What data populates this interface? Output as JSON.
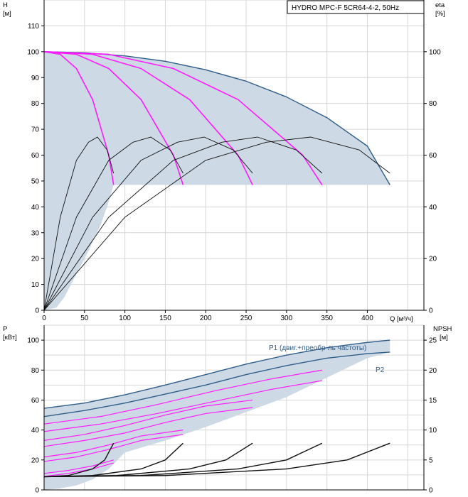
{
  "chart_data": [
    {
      "type": "line",
      "title": "HYDRO MPC-F 5CR64-4-2, 50Hz",
      "x_axis": {
        "label": "Q [м³/ч]",
        "range": [
          0,
          470
        ],
        "ticks": [
          "0",
          "50",
          "100",
          "150",
          "200",
          "250",
          "300",
          "350",
          "400"
        ],
        "tick_values": [
          0,
          50,
          100,
          150,
          200,
          250,
          300,
          350,
          400
        ]
      },
      "left_axis": {
        "label_line1": "H",
        "label_line2": "[м]",
        "range": [
          0,
          120
        ],
        "ticks": [
          "0",
          "10",
          "20",
          "30",
          "40",
          "50",
          "60",
          "70",
          "80",
          "90",
          "100",
          "110"
        ],
        "tick_values": [
          0,
          10,
          20,
          30,
          40,
          50,
          60,
          70,
          80,
          90,
          100,
          110
        ]
      },
      "right_axis": {
        "label_line1": "eta",
        "label_line2": "[%]",
        "range": [
          0,
          120
        ],
        "ticks": [
          "0",
          "20",
          "40",
          "60",
          "80",
          "100"
        ],
        "tick_values": [
          0,
          20,
          40,
          60,
          80,
          100
        ]
      },
      "grid": true,
      "colors": {
        "envelope": "#cdd9e5",
        "max_curve": "#2f5d8a",
        "speed_curve": "#ff1aff",
        "eff_curve": "#111111"
      },
      "series": [
        {
          "kind": "head_max_4pumps",
          "x": [
            0,
            50,
            100,
            150,
            200,
            250,
            300,
            350,
            400,
            428
          ],
          "y": [
            100,
            99.6,
            98.4,
            96.3,
            93.0,
            88.6,
            82.5,
            74.5,
            63.5,
            48.5
          ]
        },
        {
          "kind": "head_1pump_reduced",
          "x": [
            0,
            20,
            40,
            60,
            80,
            86
          ],
          "y": [
            100,
            99.0,
            93.5,
            81.5,
            60.0,
            48.5
          ]
        },
        {
          "kind": "head_2pumps_reduced",
          "x": [
            0,
            40,
            80,
            120,
            160,
            172
          ],
          "y": [
            100,
            99.0,
            93.5,
            81.5,
            60.0,
            48.5
          ]
        },
        {
          "kind": "head_3pumps_reduced",
          "x": [
            0,
            60,
            120,
            180,
            240,
            258
          ],
          "y": [
            100,
            99.0,
            93.5,
            81.5,
            60.0,
            48.5
          ]
        },
        {
          "kind": "head_4pumps_reduced",
          "x": [
            0,
            80,
            160,
            240,
            320,
            344
          ],
          "y": [
            100,
            99.0,
            93.5,
            81.5,
            60.0,
            48.5
          ]
        },
        {
          "kind": "eta_1pump",
          "x": [
            0,
            20,
            40,
            55,
            66,
            78,
            86
          ],
          "y": [
            0,
            36,
            58,
            65,
            67,
            62,
            53
          ]
        },
        {
          "kind": "eta_2pumps",
          "x": [
            0,
            40,
            80,
            110,
            132,
            156,
            172
          ],
          "y": [
            0,
            36,
            58,
            65,
            67,
            62,
            53
          ]
        },
        {
          "kind": "eta_3pumps",
          "x": [
            0,
            60,
            120,
            165,
            198,
            234,
            258
          ],
          "y": [
            0,
            36,
            58,
            65,
            67,
            62,
            53
          ]
        },
        {
          "kind": "eta_4pumps",
          "x": [
            0,
            80,
            160,
            220,
            264,
            312,
            344
          ],
          "y": [
            0,
            36,
            58,
            65,
            67,
            62,
            53
          ]
        },
        {
          "kind": "eta_4pumps_max",
          "x": [
            0,
            100,
            200,
            275,
            330,
            390,
            428
          ],
          "y": [
            0,
            36,
            58,
            65,
            67,
            62,
            53
          ]
        }
      ],
      "envelope": {
        "upper_x": [
          0,
          50,
          100,
          150,
          200,
          250,
          300,
          350,
          400,
          428
        ],
        "upper_y": [
          100,
          99.6,
          98.4,
          96.3,
          93.0,
          88.6,
          82.5,
          74.5,
          63.5,
          48.5
        ],
        "lower_x": [
          428,
          90,
          86,
          80,
          70,
          55,
          40,
          25,
          15,
          0
        ],
        "lower_y": [
          48.5,
          48.5,
          48.5,
          42,
          33,
          23,
          14,
          5,
          1,
          0
        ]
      }
    },
    {
      "type": "line",
      "x_axis": {
        "range": [
          0,
          470
        ]
      },
      "left_axis": {
        "label_line1": "P",
        "label_line2": "[кВт]",
        "range": [
          0,
          110
        ],
        "ticks": [
          "0",
          "20",
          "40",
          "60",
          "80",
          "100"
        ],
        "tick_values": [
          0,
          20,
          40,
          60,
          80,
          100
        ]
      },
      "right_axis": {
        "label_line1": "NPSH",
        "label_line2": "[м]",
        "range": [
          0,
          27.5
        ],
        "ticks": [
          "0",
          "5",
          "10",
          "15",
          "20",
          "25"
        ],
        "tick_values": [
          0,
          5,
          10,
          15,
          20,
          25
        ]
      },
      "grid": true,
      "annotations": [
        {
          "text": "P1 (двиг.+преобр-ль частоты)",
          "color": "#2f5d8a"
        },
        {
          "text": "P2",
          "color": "#2f5d8a"
        }
      ],
      "series": [
        {
          "kind": "p1_max",
          "x": [
            0,
            50,
            100,
            150,
            200,
            250,
            300,
            350,
            400,
            428
          ],
          "y": [
            54.5,
            58,
            63.5,
            70,
            77,
            84,
            90,
            95,
            98.5,
            100
          ]
        },
        {
          "kind": "p2_max",
          "x": [
            0,
            50,
            100,
            150,
            200,
            250,
            300,
            350,
            400,
            428
          ],
          "y": [
            49,
            53,
            58,
            64,
            70,
            77,
            83,
            88,
            91,
            92
          ]
        },
        {
          "kind": "p1_3pumps",
          "x": [
            0,
            70,
            140,
            210,
            280,
            344
          ],
          "y": [
            44,
            49,
            57,
            66,
            74,
            80
          ]
        },
        {
          "kind": "p2_3pumps",
          "x": [
            0,
            70,
            140,
            210,
            280,
            344
          ],
          "y": [
            39,
            44,
            51,
            59,
            67,
            73
          ]
        },
        {
          "kind": "p1_2pumps",
          "x": [
            0,
            50,
            100,
            150,
            200,
            258
          ],
          "y": [
            33,
            37,
            43,
            50,
            56,
            60
          ]
        },
        {
          "kind": "p2_2pumps",
          "x": [
            0,
            50,
            100,
            150,
            200,
            258
          ],
          "y": [
            29,
            33,
            38,
            45,
            51,
            55
          ]
        },
        {
          "kind": "p1_1pump",
          "x": [
            0,
            40,
            80,
            120,
            172
          ],
          "y": [
            22,
            25,
            30,
            36,
            40
          ]
        },
        {
          "kind": "p2_1pump",
          "x": [
            0,
            40,
            80,
            120,
            172
          ],
          "y": [
            19,
            22,
            27,
            33,
            37
          ]
        },
        {
          "kind": "p1_1pump_min",
          "x": [
            0,
            30,
            60,
            86
          ],
          "y": [
            11,
            13,
            16,
            20
          ]
        },
        {
          "kind": "p2_1pump_min",
          "x": [
            0,
            30,
            60,
            86
          ],
          "y": [
            9,
            11,
            14,
            18
          ]
        },
        {
          "kind": "npsh_1pump",
          "x": [
            0,
            30,
            60,
            75,
            86
          ],
          "y": [
            2.2,
            2.4,
            3.5,
            5,
            7.8
          ]
        },
        {
          "kind": "npsh_2pumps",
          "x": [
            0,
            60,
            120,
            150,
            172
          ],
          "y": [
            2.2,
            2.4,
            3.5,
            5,
            7.8
          ]
        },
        {
          "kind": "npsh_3pumps",
          "x": [
            0,
            90,
            180,
            225,
            258
          ],
          "y": [
            2.2,
            2.4,
            3.5,
            5,
            7.8
          ]
        },
        {
          "kind": "npsh_4pumps",
          "x": [
            0,
            120,
            240,
            300,
            344
          ],
          "y": [
            2.2,
            2.4,
            3.5,
            5,
            7.8
          ]
        },
        {
          "kind": "npsh_4pumps_max",
          "x": [
            0,
            150,
            300,
            375,
            428
          ],
          "y": [
            2.2,
            2.4,
            3.5,
            5,
            7.8
          ]
        }
      ],
      "envelope": {
        "upper_x": [
          0,
          50,
          100,
          150,
          200,
          250,
          300,
          350,
          400,
          428
        ],
        "upper_y": [
          54.5,
          58,
          63.5,
          70,
          77,
          84,
          90,
          95,
          98.5,
          100
        ],
        "lower_x": [
          428,
          400,
          350,
          300,
          250,
          200,
          150,
          100,
          80,
          60,
          40,
          20,
          0
        ],
        "lower_y": [
          92,
          88,
          75,
          62,
          52,
          42,
          33,
          25,
          14,
          7,
          3,
          1,
          0
        ]
      }
    }
  ]
}
